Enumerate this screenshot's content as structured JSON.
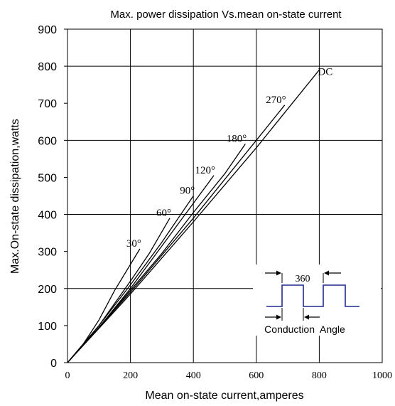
{
  "chart_data": {
    "type": "line",
    "title": "Max. power dissipation Vs.mean on-state current",
    "xlabel": "Mean on-state current,amperes",
    "ylabel": "Max.On-state dissipation,watts",
    "xlim": [
      0,
      1000
    ],
    "ylim": [
      0,
      900
    ],
    "x_ticks": [
      "0",
      "200",
      "400",
      "600",
      "800",
      "1000"
    ],
    "y_ticks": [
      "0",
      "100",
      "200",
      "300",
      "400",
      "500",
      "600",
      "700",
      "800",
      "900"
    ],
    "grid": true,
    "series": [
      {
        "name": "30°",
        "color": "#000000",
        "points": [
          [
            0,
            0
          ],
          [
            50,
            50
          ],
          [
            100,
            115
          ],
          [
            150,
            195
          ],
          [
            200,
            265
          ],
          [
            230,
            307
          ]
        ]
      },
      {
        "name": "60°",
        "color": "#000000",
        "points": [
          [
            0,
            0
          ],
          [
            100,
            100
          ],
          [
            200,
            220
          ],
          [
            260,
            295
          ],
          [
            325,
            390
          ]
        ]
      },
      {
        "name": "90°",
        "color": "#000000",
        "points": [
          [
            0,
            0
          ],
          [
            100,
            100
          ],
          [
            200,
            210
          ],
          [
            300,
            325
          ],
          [
            400,
            450
          ]
        ]
      },
      {
        "name": "120°",
        "color": "#000000",
        "points": [
          [
            0,
            0
          ],
          [
            100,
            95
          ],
          [
            200,
            200
          ],
          [
            300,
            315
          ],
          [
            400,
            430
          ],
          [
            465,
            505
          ]
        ]
      },
      {
        "name": "180°",
        "color": "#000000",
        "points": [
          [
            0,
            0
          ],
          [
            100,
            95
          ],
          [
            200,
            195
          ],
          [
            300,
            295
          ],
          [
            400,
            405
          ],
          [
            500,
            510
          ],
          [
            565,
            590
          ]
        ]
      },
      {
        "name": "270°",
        "color": "#000000",
        "points": [
          [
            0,
            0
          ],
          [
            200,
            190
          ],
          [
            400,
            390
          ],
          [
            600,
            600
          ],
          [
            690,
            695
          ]
        ]
      },
      {
        "name": "DC",
        "color": "#000000",
        "points": [
          [
            0,
            0
          ],
          [
            200,
            185
          ],
          [
            400,
            380
          ],
          [
            600,
            580
          ],
          [
            800,
            790
          ]
        ]
      }
    ],
    "inset": {
      "period_label": "360",
      "conduction_label": "Conduction  Angle",
      "waveform_color": "#1f2a8c"
    }
  }
}
